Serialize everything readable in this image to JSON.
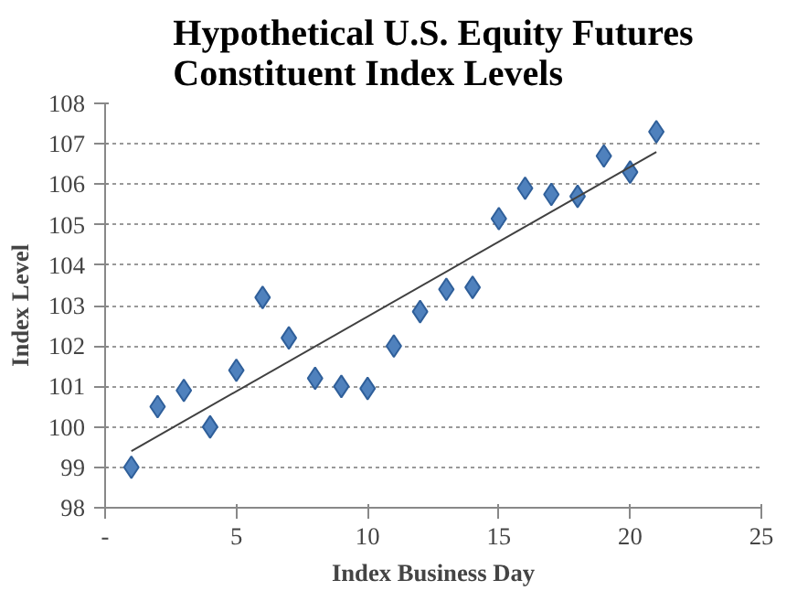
{
  "chart_data": {
    "type": "scatter",
    "title": "Hypothetical U.S. Equity Futures\nConstituent Index Levels",
    "xlabel": "Index Business Day",
    "ylabel": "Index Level",
    "x": [
      1,
      2,
      3,
      4,
      5,
      6,
      7,
      8,
      9,
      10,
      11,
      12,
      13,
      14,
      15,
      16,
      17,
      18,
      19,
      20,
      21
    ],
    "series": [
      {
        "color": "#4f81bd",
        "marker": "diamond",
        "values": [
          99.0,
          100.5,
          100.9,
          100.0,
          101.4,
          103.2,
          102.2,
          101.2,
          101.0,
          100.95,
          102.0,
          102.85,
          103.4,
          103.45,
          105.15,
          105.9,
          105.75,
          105.7,
          106.7,
          106.3,
          107.3
        ]
      },
      {
        "type": "line",
        "color": "#404040",
        "x": [
          1,
          21
        ],
        "values": [
          99.4,
          106.8
        ]
      }
    ],
    "xlim": [
      0,
      25
    ],
    "xticks": [
      {
        "value": 0,
        "label": "-"
      },
      5,
      10,
      15,
      20,
      25
    ],
    "ylim": [
      98,
      108
    ],
    "yticks": [
      98,
      99,
      100,
      101,
      102,
      103,
      104,
      105,
      106,
      107,
      108
    ],
    "grid": "y"
  }
}
